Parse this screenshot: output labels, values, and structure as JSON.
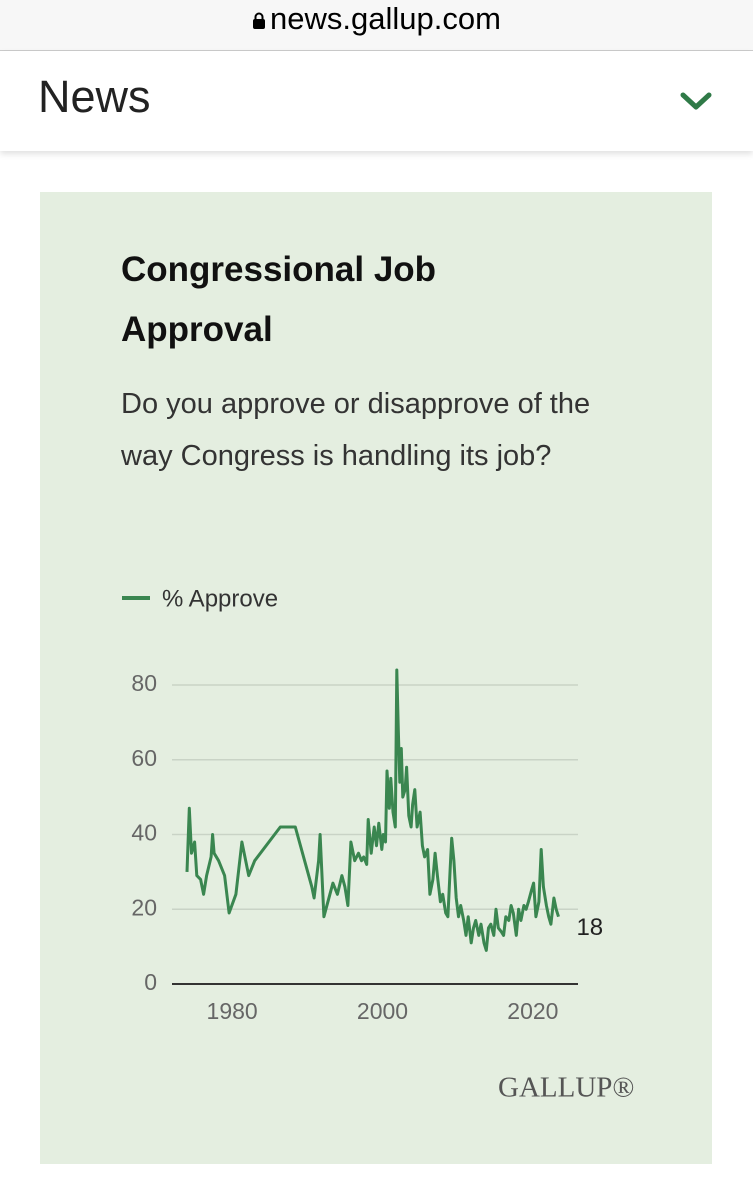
{
  "browser": {
    "url": "news.gallup.com"
  },
  "nav": {
    "title": "News"
  },
  "brand": "GALLUP®",
  "chart_data": {
    "type": "line",
    "title": "Congressional Job Approval",
    "subtitle": "Do you approve or disapprove of the way Congress is handling its job?",
    "x": [
      1974.0,
      1974.3,
      1974.6,
      1975.0,
      1975.3,
      1975.8,
      1976.2,
      1976.6,
      1977.2,
      1977.4,
      1977.6,
      1978.2,
      1979.0,
      1979.6,
      1980.5,
      1981.3,
      1982.2,
      1983.0,
      1986.4,
      1988.4,
      1990.6,
      1990.9,
      1991.5,
      1991.7,
      1992.2,
      1993.0,
      1993.4,
      1994.0,
      1994.6,
      1995.0,
      1995.4,
      1995.8,
      1996.3,
      1996.8,
      1997.2,
      1997.5,
      1997.9,
      1998.1,
      1998.5,
      1998.9,
      1999.2,
      1999.5,
      1999.9,
      2000.1,
      2000.4,
      2000.6,
      2000.9,
      2001.1,
      2001.4,
      2001.7,
      2001.9,
      2002.1,
      2002.3,
      2002.5,
      2002.7,
      2003.0,
      2003.2,
      2003.5,
      2003.8,
      2004.0,
      2004.3,
      2004.6,
      2005.0,
      2005.3,
      2005.6,
      2006.0,
      2006.3,
      2006.7,
      2007.0,
      2007.3,
      2007.7,
      2008.0,
      2008.4,
      2008.7,
      2009.0,
      2009.2,
      2009.5,
      2009.8,
      2010.1,
      2010.4,
      2010.8,
      2011.1,
      2011.4,
      2011.8,
      2012.1,
      2012.4,
      2012.8,
      2013.1,
      2013.5,
      2013.8,
      2014.1,
      2014.4,
      2014.8,
      2015.1,
      2015.4,
      2015.8,
      2016.1,
      2016.4,
      2016.8,
      2017.1,
      2017.4,
      2017.8,
      2018.1,
      2018.4,
      2018.8,
      2019.1,
      2019.4,
      2019.8,
      2020.1,
      2020.4,
      2020.8,
      2021.1,
      2021.4,
      2021.8,
      2022.1,
      2022.4,
      2022.8,
      2023.1,
      2023.4
    ],
    "series": [
      {
        "name": "% Approve",
        "color": "#3a8650",
        "values": [
          30,
          47,
          35,
          38,
          29,
          28,
          24,
          29,
          34,
          40,
          35,
          33,
          29,
          19,
          24,
          38,
          29,
          33,
          42,
          42,
          26,
          23,
          33,
          40,
          18,
          24,
          27,
          24,
          29,
          26,
          21,
          38,
          33,
          35,
          33,
          34,
          32,
          44,
          35,
          42,
          37,
          43,
          36,
          40,
          38,
          57,
          47,
          55,
          46,
          42,
          84,
          68,
          54,
          63,
          50,
          52,
          58,
          45,
          42,
          48,
          52,
          42,
          46,
          37,
          34,
          36,
          24,
          28,
          35,
          29,
          22,
          24,
          19,
          18,
          31,
          39,
          33,
          23,
          18,
          21,
          17,
          13,
          18,
          11,
          15,
          17,
          13,
          16,
          11,
          9,
          15,
          16,
          13,
          20,
          15,
          14,
          13,
          18,
          17,
          21,
          19,
          13,
          20,
          17,
          21,
          20,
          22,
          25,
          27,
          18,
          22,
          36,
          26,
          21,
          18,
          16,
          23,
          20,
          18
        ]
      }
    ],
    "xlim": [
      1972,
      2026
    ],
    "ylim": [
      0,
      80
    ],
    "xticks": [
      1980,
      2000,
      2020
    ],
    "yticks": [
      0,
      20,
      40,
      60,
      80
    ],
    "grid": true
  }
}
